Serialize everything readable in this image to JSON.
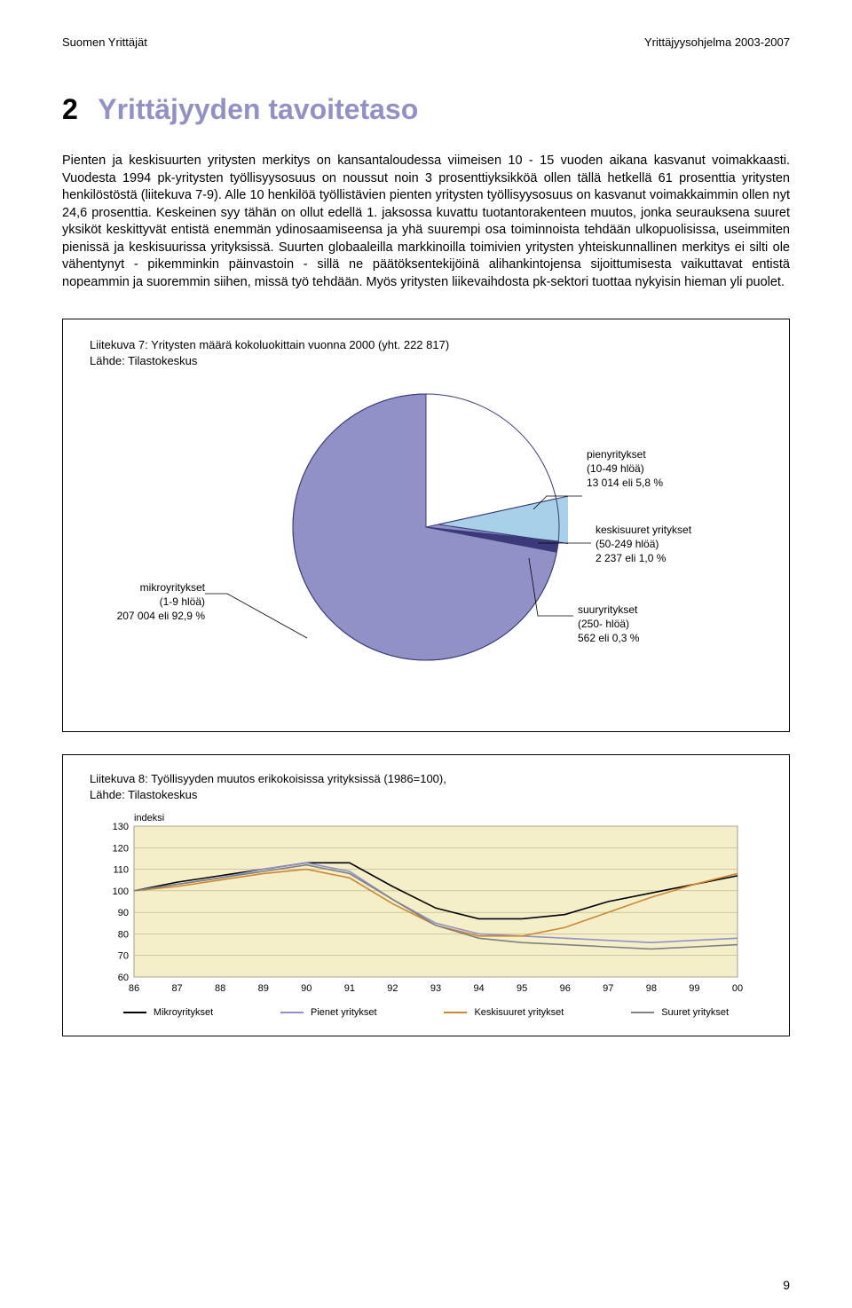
{
  "header": {
    "left": "Suomen Yrittäjät",
    "right": "Yrittäjyysohjelma 2003-2007"
  },
  "section": {
    "number": "2",
    "title": "Yrittäjyyden tavoitetaso"
  },
  "body": "Pienten ja keskisuurten yritysten merkitys on kansantaloudessa viimeisen 10 - 15 vuoden aikana kasvanut voimakkaasti. Vuodesta 1994 pk-yritysten työllisyysosuus on noussut noin 3 prosenttiyksikköä ollen tällä hetkellä 61 prosenttia yritysten henkilöstöstä (liitekuva 7-9). Alle 10 henkilöä työllistävien pienten yritysten työllisyysosuus on kasvanut voimakkaimmin ollen nyt 24,6 prosenttia. Keskeinen syy tähän on ollut edellä 1. jaksossa kuvattu tuotantorakenteen muutos, jonka seurauksena suuret yksiköt keskittyvät entistä enemmän ydinosaamiseensa ja yhä suurempi osa toiminnoista tehdään ulkopuolisissa, useimmiten pienissä ja keskisuurissa yrityksissä. Suurten globaaleilla markkinoilla toimivien yritysten yhteiskunnallinen merkitys ei silti ole vähentynyt - pikemminkin päinvastoin - sillä ne päätöksentekijöinä alihankintojensa sijoittumisesta vaikuttavat entistä nopeammin ja suoremmin siihen, missä työ tehdään. Myös yritysten liikevaihdosta pk-sektori tuottaa nykyisin hieman yli puolet.",
  "pie_figure": {
    "caption_line1": "Liitekuva 7: Yritysten määrä kokoluokittain vuonna 2000 (yht. 222 817)",
    "caption_line2": "Lähde: Tilastokeskus",
    "colors": {
      "micro": "#9191c8",
      "small": "#a8d0e8",
      "medium": "#3a3a7a",
      "large": "#9191c8",
      "outline": "#3a3a7a"
    },
    "labels": {
      "micro_l1": "mikroyritykset",
      "micro_l2": "(1-9 hlöä)",
      "micro_l3": "207 004 eli 92,9 %",
      "small_l1": "pienyritykset",
      "small_l2": "(10-49 hlöä)",
      "small_l3": "13 014 eli 5,8 %",
      "medium_l1": "keskisuuret yritykset",
      "medium_l2": "(50-249 hlöä)",
      "medium_l3": "2 237 eli 1,0 %",
      "large_l1": "suuryritykset",
      "large_l2": "(250- hlöä)",
      "large_l3": "562 eli 0,3 %"
    }
  },
  "line_figure": {
    "caption_line1": "Liitekuva 8: Työllisyyden muutos erikokoisissa yrityksissä (1986=100),",
    "caption_line2": "Lähde: Tilastokeskus",
    "ylabel": "indeksi",
    "ylim": [
      60,
      130
    ],
    "ytick_step": 10,
    "x_categories": [
      "86",
      "87",
      "88",
      "89",
      "90",
      "91",
      "92",
      "93",
      "94",
      "95",
      "96",
      "97",
      "98",
      "99",
      "00"
    ],
    "background_color": "#f5efc9",
    "grid_color": "#b8b080",
    "series": [
      {
        "name": "Mikroyritykset",
        "color": "#000000",
        "values": [
          100,
          104,
          107,
          110,
          113,
          113,
          102,
          92,
          87,
          87,
          89,
          95,
          99,
          103,
          107
        ]
      },
      {
        "name": "Pienet yritykset",
        "color": "#9191c8",
        "values": [
          100,
          103,
          106,
          110,
          113,
          109,
          96,
          85,
          80,
          79,
          78,
          77,
          76,
          77,
          78
        ]
      },
      {
        "name": "Keskisuuret yritykset",
        "color": "#cc8833",
        "values": [
          100,
          102,
          105,
          108,
          110,
          106,
          94,
          84,
          79,
          79,
          83,
          90,
          97,
          103,
          108
        ]
      },
      {
        "name": "Suuret yritykset",
        "color": "#808080",
        "values": [
          100,
          103,
          106,
          109,
          112,
          108,
          96,
          84,
          78,
          76,
          75,
          74,
          73,
          74,
          75
        ]
      }
    ],
    "legend": [
      "Mikroyritykset",
      "Pienet yritykset",
      "Keskisuuret yritykset",
      "Suuret yritykset"
    ]
  },
  "page_number": "9"
}
